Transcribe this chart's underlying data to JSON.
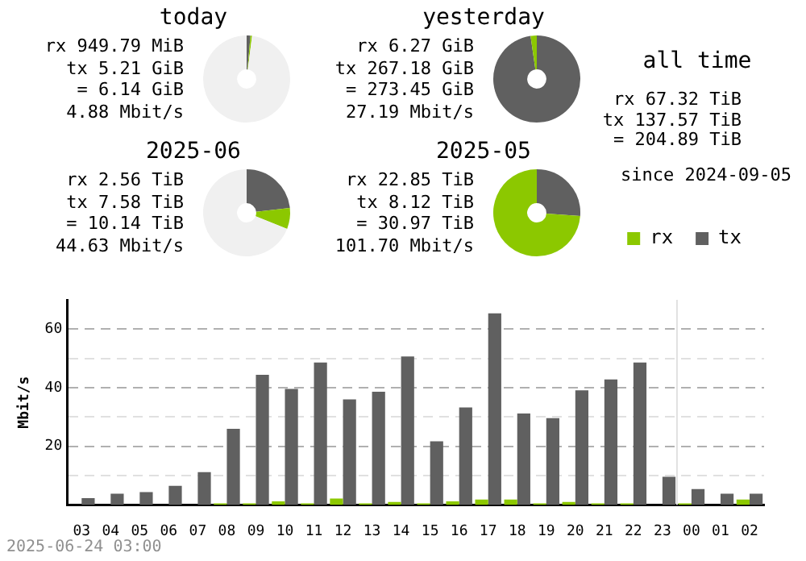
{
  "chart_data": [
    {
      "type": "donut",
      "title": "today",
      "categories": [
        null,
        null,
        null
      ],
      "values": [
        1.4,
        0.6,
        98
      ],
      "colors": [
        "#606060",
        "#8cc800",
        "#f0f0f0"
      ],
      "annotations": [
        "rx 949.79 MiB",
        "tx 5.21 GiB",
        "= 6.14 GiB",
        "4.88 Mbit/s"
      ]
    },
    {
      "type": "donut",
      "title": "yesterday",
      "categories": [
        null,
        null
      ],
      "values": [
        97.7,
        2.3
      ],
      "colors": [
        "#606060",
        "#8cc800"
      ],
      "annotations": [
        "rx 6.27 GiB",
        "tx 267.18 GiB",
        "= 273.45 GiB",
        "27.19 Mbit/s"
      ]
    },
    {
      "type": "other",
      "title": "all time",
      "annotations": [
        "rx 67.32 TiB",
        "tx 137.57 TiB",
        "= 204.89 TiB",
        "since 2024-09-05"
      ]
    },
    {
      "type": "donut",
      "title": "2025-06",
      "categories": [
        null,
        null,
        null
      ],
      "values": [
        23.2,
        7.8,
        69
      ],
      "colors": [
        "#606060",
        "#8cc800",
        "#f0f0f0"
      ],
      "annotations": [
        "rx 2.56 TiB",
        "tx 7.58 TiB",
        "= 10.14 TiB",
        "44.63 Mbit/s"
      ]
    },
    {
      "type": "donut",
      "title": "2025-05",
      "categories": [
        null,
        null
      ],
      "values": [
        26.2,
        73.8
      ],
      "colors": [
        "#606060",
        "#8cc800"
      ],
      "annotations": [
        "rx 22.85 TiB",
        "tx 8.12 TiB",
        "= 30.97 TiB",
        "101.70 Mbit/s"
      ]
    },
    {
      "type": "bar",
      "ylabel": "Mbit/s",
      "categories": [
        "03",
        "04",
        "05",
        "06",
        "07",
        "08",
        "09",
        "10",
        "11",
        "12",
        "13",
        "14",
        "15",
        "16",
        "17",
        "18",
        "19",
        "20",
        "21",
        "22",
        "23",
        "00",
        "01",
        "02"
      ],
      "series": [
        {
          "name": "rx",
          "color": "#8cc800",
          "values": [
            0,
            0,
            0,
            0,
            0,
            0.5,
            0.5,
            1.2,
            0.5,
            2.2,
            0.5,
            1,
            0.5,
            1.2,
            1.8,
            1.8,
            0.5,
            1,
            0.5,
            0.5,
            0,
            0.5,
            0,
            1.8
          ]
        },
        {
          "name": "tx",
          "color": "#606060",
          "values": [
            2.3,
            3.8,
            4.4,
            6.5,
            11.2,
            26,
            44.4,
            39.6,
            48.6,
            36,
            38.6,
            50.7,
            21.7,
            33.3,
            65.4,
            31.2,
            29.6,
            39.1,
            42.8,
            48.6,
            9.6,
            5.4,
            3.8,
            3.8
          ]
        }
      ],
      "ylim": [
        0,
        70
      ],
      "yticks": [
        {
          "value": 10,
          "label": null
        },
        20,
        {
          "value": 30,
          "label": null
        },
        40,
        {
          "value": 50,
          "label": null
        },
        60
      ],
      "grid": "y",
      "legend": "top right",
      "ref_lines": [
        {
          "axis": "x",
          "value": "00",
          "color": "#e0e0e0"
        }
      ],
      "annotations": [
        "2025-06-24 03:00"
      ]
    }
  ]
}
